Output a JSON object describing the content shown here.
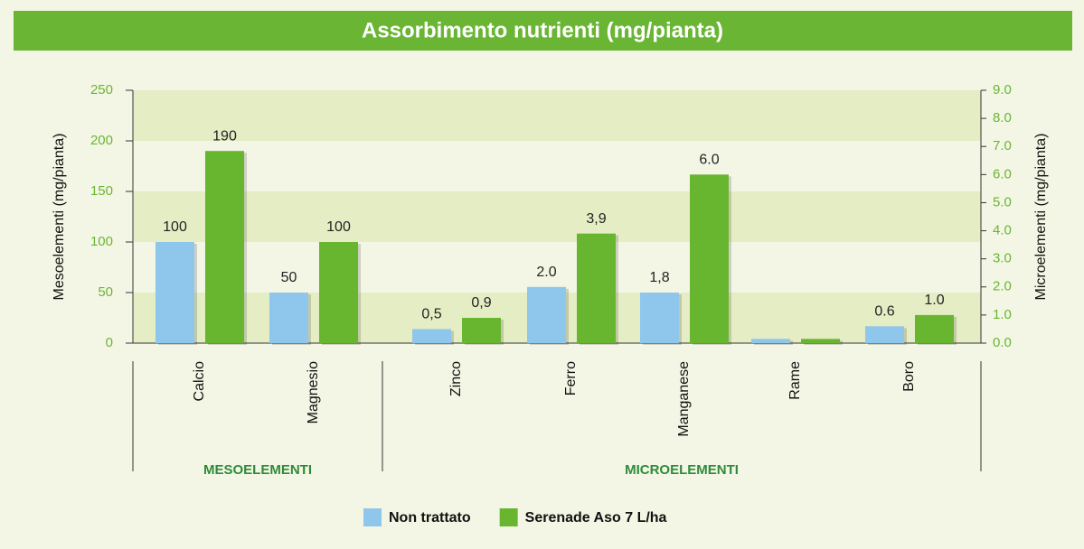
{
  "chart_data": {
    "type": "bar",
    "title": "Assorbimento nutrienti (mg/pianta)",
    "ylabel": "Mesoelementi (mg/pianta)",
    "y2label": "Microelementi (mg/pianta)",
    "ylim": [
      0,
      250
    ],
    "yticks": [
      0,
      50,
      100,
      150,
      200,
      250
    ],
    "y2lim": [
      0,
      9
    ],
    "y2ticks": [
      {
        "value": 0,
        "label": "0.0"
      },
      {
        "value": 1,
        "label": "1.0"
      },
      {
        "value": 2,
        "label": "2.0"
      },
      {
        "value": 3,
        "label": "3.0"
      },
      {
        "value": 4,
        "label": "4.0"
      },
      {
        "value": 5,
        "label": "5.0"
      },
      {
        "value": 6,
        "label": "6.0"
      },
      {
        "value": 7,
        "label": "7.0"
      },
      {
        "value": 8,
        "label": "8.0"
      },
      {
        "value": 9,
        "label": "9.0"
      }
    ],
    "series": [
      {
        "name": "Non trattato",
        "color": "#8ec6ec"
      },
      {
        "name": "Serenade Aso 7 L/ha",
        "color": "#68b530"
      }
    ],
    "groups": [
      {
        "label": "MESOELEMENTI",
        "axis": "y",
        "categories": [
          "Calcio",
          "Magnesio"
        ],
        "series": [
          {
            "values": [
              100,
              50
            ]
          },
          {
            "values": [
              190,
              100
            ]
          }
        ]
      },
      {
        "label": "MICROELEMENTI",
        "axis": "y2",
        "categories": [
          "Zinco",
          "Ferro",
          "Manganese",
          "Rame",
          "Boro"
        ],
        "series": [
          {
            "values": [
              0.5,
              2.0,
              1.8,
              0.15,
              0.6
            ],
            "value_labels": [
              "0,5",
              "2.0",
              "1,8",
              null,
              "0.6"
            ]
          },
          {
            "values": [
              0.9,
              3.9,
              6.0,
              0.15,
              1.0
            ],
            "value_labels": [
              "0,9",
              "3,9",
              "6.0",
              null,
              "1.0"
            ]
          }
        ]
      }
    ]
  }
}
